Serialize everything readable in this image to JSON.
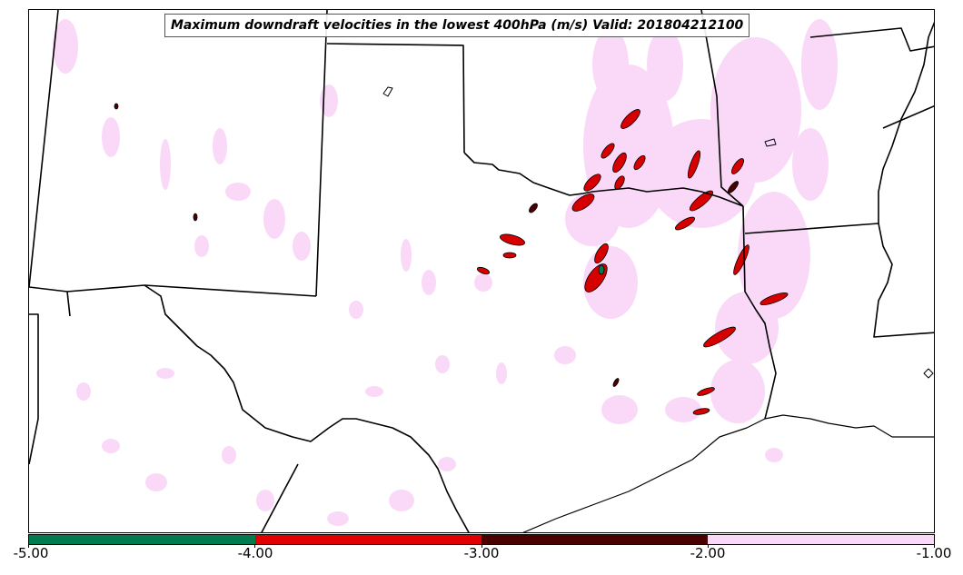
{
  "map": {
    "title": "Maximum downdraft velocities in the lowest 400hPa (m/s) Valid: 201804212100",
    "variable": "Maximum downdraft velocity",
    "units": "m/s",
    "valid_time": "201804212100"
  },
  "colorbar": {
    "ticks": [
      "-5.00",
      "-4.00",
      "-3.00",
      "-2.00",
      "-1.00"
    ],
    "bins": [
      {
        "range": [
          -5.0,
          -4.0
        ],
        "color": "#007a4e"
      },
      {
        "range": [
          -4.0,
          -3.0
        ],
        "color": "#e00000"
      },
      {
        "range": [
          -3.0,
          -2.0
        ],
        "color": "#4a0000"
      },
      {
        "range": [
          -2.0,
          -1.0
        ],
        "color": "#fad9f8"
      }
    ]
  },
  "colors": {
    "light_pink": "#fad9f8",
    "red": "#d60000",
    "dark_red": "#4a0000",
    "green": "#007a4e"
  }
}
